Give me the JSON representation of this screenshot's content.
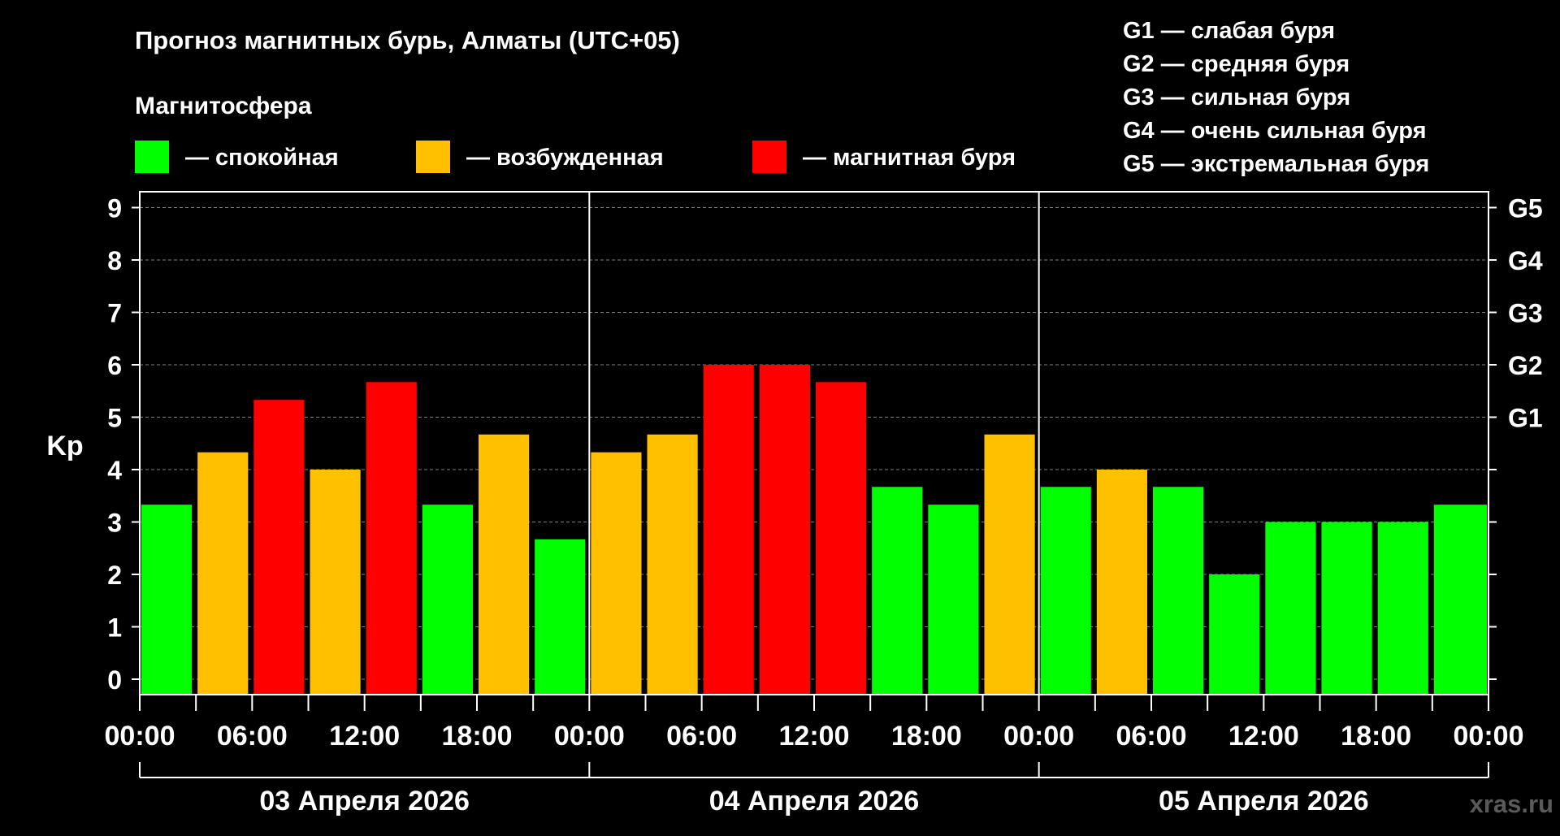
{
  "colors": {
    "background": "#000000",
    "text": "#ffffff",
    "grid": "#808080",
    "quiet": "#00ff00",
    "active": "#ffc000",
    "storm": "#ff0000",
    "watermark": "#5a5a5a"
  },
  "header": {
    "title": "Прогноз магнитных бурь, Алматы (UTC+05)",
    "legend_title": "Магнитосфера"
  },
  "legend": {
    "items": [
      {
        "label": "— спокойная",
        "color_key": "quiet"
      },
      {
        "label": "— возбужденная",
        "color_key": "active"
      },
      {
        "label": "— магнитная буря",
        "color_key": "storm"
      }
    ],
    "g_scale": [
      "G1 — слабая буря",
      "G2 — средняя буря",
      "G3 — сильная буря",
      "G4 — очень сильная буря",
      "G5 — экстремальная буря"
    ]
  },
  "watermark": "xras.ru",
  "chart_data": {
    "type": "bar",
    "title": "Прогноз магнитных бурь, Алматы (UTC+05)",
    "ylabel": "Kp",
    "ylim": [
      0,
      9
    ],
    "yticks": [
      "0",
      "1",
      "2",
      "3",
      "4",
      "5",
      "6",
      "7",
      "8",
      "9"
    ],
    "right_labels": [
      {
        "value": 5,
        "label": "G1"
      },
      {
        "value": 6,
        "label": "G2"
      },
      {
        "value": 7,
        "label": "G3"
      },
      {
        "value": 8,
        "label": "G4"
      },
      {
        "value": 9,
        "label": "G5"
      }
    ],
    "grid": true,
    "x_hours_range": [
      0,
      72
    ],
    "xtick_labels": [
      "00:00",
      "06:00",
      "12:00",
      "18:00",
      "00:00",
      "06:00",
      "12:00",
      "18:00",
      "00:00",
      "06:00",
      "12:00",
      "18:00",
      "00:00"
    ],
    "days": [
      "03 Апреля 2026",
      "04 Апреля 2026",
      "05 Апреля 2026"
    ],
    "bars": [
      {
        "start_hour": 0,
        "kp": 3.33,
        "level": "quiet"
      },
      {
        "start_hour": 3,
        "kp": 4.33,
        "level": "active"
      },
      {
        "start_hour": 6,
        "kp": 5.33,
        "level": "storm"
      },
      {
        "start_hour": 9,
        "kp": 4.0,
        "level": "active"
      },
      {
        "start_hour": 12,
        "kp": 5.67,
        "level": "storm"
      },
      {
        "start_hour": 15,
        "kp": 3.33,
        "level": "quiet"
      },
      {
        "start_hour": 18,
        "kp": 4.67,
        "level": "active"
      },
      {
        "start_hour": 21,
        "kp": 2.67,
        "level": "quiet"
      },
      {
        "start_hour": 24,
        "kp": 4.33,
        "level": "active"
      },
      {
        "start_hour": 27,
        "kp": 4.67,
        "level": "active"
      },
      {
        "start_hour": 30,
        "kp": 6.0,
        "level": "storm"
      },
      {
        "start_hour": 33,
        "kp": 6.0,
        "level": "storm"
      },
      {
        "start_hour": 36,
        "kp": 5.67,
        "level": "storm"
      },
      {
        "start_hour": 39,
        "kp": 3.67,
        "level": "quiet"
      },
      {
        "start_hour": 42,
        "kp": 3.33,
        "level": "quiet"
      },
      {
        "start_hour": 45,
        "kp": 4.67,
        "level": "active"
      },
      {
        "start_hour": 48,
        "kp": 3.67,
        "level": "quiet"
      },
      {
        "start_hour": 51,
        "kp": 4.0,
        "level": "active"
      },
      {
        "start_hour": 54,
        "kp": 3.67,
        "level": "quiet"
      },
      {
        "start_hour": 57,
        "kp": 2.0,
        "level": "quiet"
      },
      {
        "start_hour": 60,
        "kp": 3.0,
        "level": "quiet"
      },
      {
        "start_hour": 63,
        "kp": 3.0,
        "level": "quiet"
      },
      {
        "start_hour": 66,
        "kp": 3.0,
        "level": "quiet"
      },
      {
        "start_hour": 69,
        "kp": 3.33,
        "level": "quiet"
      }
    ]
  }
}
